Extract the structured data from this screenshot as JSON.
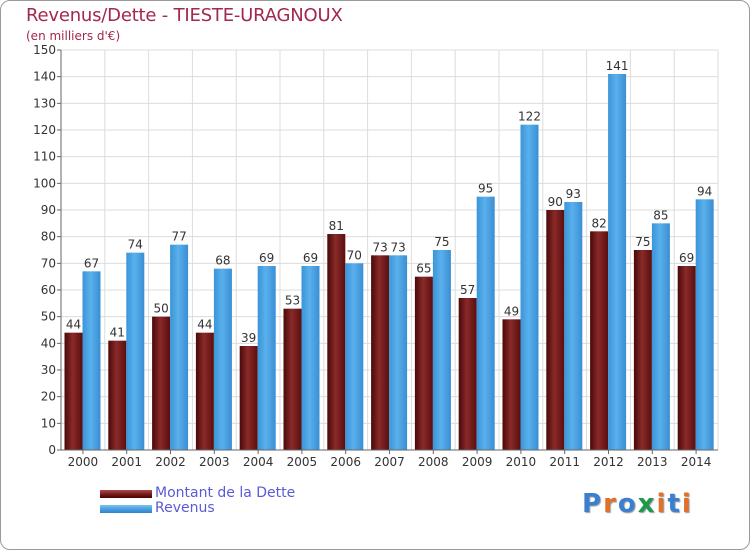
{
  "header": {
    "title": "Revenus/Dette - TIESTE-URAGNOUX",
    "subtitle": "(en milliers d'€)"
  },
  "legend": {
    "dette_label": "Montant de la Dette",
    "revenus_label": "Revenus"
  },
  "logo": {
    "text": "Proxiti",
    "colors": [
      "#3a7fd0",
      "#e0702a",
      "#3a7fd0",
      "#1a9a4a",
      "#e0702a",
      "#3a7fd0",
      "#e0702a"
    ]
  },
  "colors": {
    "dette": "#7a1e1e",
    "revenus": "#4aa0e0",
    "title": "#a3284b",
    "legend_text": "#5a5ad8"
  },
  "chart_data": {
    "type": "bar",
    "title": "Revenus/Dette - TIESTE-URAGNOUX",
    "subtitle": "(en milliers d'€)",
    "categories": [
      "2000",
      "2001",
      "2002",
      "2003",
      "2004",
      "2005",
      "2006",
      "2007",
      "2008",
      "2009",
      "2010",
      "2011",
      "2012",
      "2013",
      "2014"
    ],
    "series": [
      {
        "name": "Montant de la Dette",
        "values": [
          44,
          41,
          50,
          44,
          39,
          53,
          81,
          73,
          65,
          57,
          49,
          90,
          82,
          75,
          69
        ]
      },
      {
        "name": "Revenus",
        "values": [
          67,
          74,
          77,
          68,
          69,
          69,
          70,
          73,
          75,
          95,
          122,
          93,
          141,
          85,
          94
        ]
      }
    ],
    "ylim": [
      0,
      150
    ],
    "yticks": [
      0,
      10,
      20,
      30,
      40,
      50,
      60,
      70,
      80,
      90,
      100,
      110,
      120,
      130,
      140,
      150
    ],
    "grid": true,
    "legend_position": "bottom-left"
  }
}
